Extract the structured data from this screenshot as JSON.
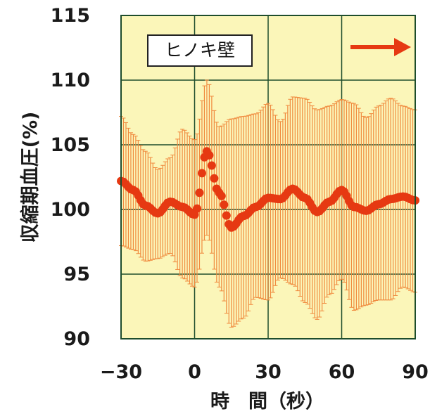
{
  "chart_data": {
    "type": "line",
    "ylabel": "収縮期血圧(%)",
    "xlabel": "時　間（秒）",
    "xlim": [
      -30,
      90
    ],
    "ylim": [
      90,
      115
    ],
    "x_ticks": [
      -30,
      0,
      30,
      60,
      90
    ],
    "y_ticks": [
      90,
      95,
      100,
      105,
      110,
      115
    ],
    "x_tick_labels": [
      "−30",
      "0",
      "30",
      "60",
      "90"
    ],
    "y_tick_labels": [
      "90",
      "95",
      "100",
      "105",
      "110",
      "115"
    ],
    "grid": true,
    "annotation": "ヒノキ壁",
    "series": [
      {
        "style": "mean-with-error-bars",
        "x": [
          -30,
          -25,
          -20,
          -15,
          -10,
          -5,
          0,
          5,
          10,
          15,
          20,
          25,
          30,
          35,
          40,
          45,
          50,
          55,
          60,
          65,
          70,
          75,
          80,
          85,
          90
        ],
        "y": [
          102.2,
          101.5,
          100.3,
          99.7,
          100.6,
          100.2,
          99.6,
          104.5,
          101.3,
          98.6,
          99.5,
          100.2,
          100.9,
          100.8,
          101.6,
          100.9,
          99.8,
          100.6,
          101.5,
          100.2,
          99.9,
          100.4,
          100.8,
          101.0,
          100.7
        ],
        "upper": [
          107.2,
          105.8,
          104.5,
          103.1,
          104.0,
          106.2,
          105.4,
          110.0,
          106.4,
          107.0,
          107.2,
          107.4,
          108.2,
          106.8,
          108.7,
          108.6,
          107.7,
          108.0,
          108.5,
          108.2,
          107.1,
          108.0,
          108.6,
          108.0,
          107.7
        ],
        "lower": [
          97.2,
          96.9,
          96.0,
          96.2,
          96.6,
          94.7,
          94.0,
          98.0,
          94.0,
          90.9,
          91.6,
          93.2,
          93.0,
          94.7,
          94.2,
          92.8,
          91.5,
          93.4,
          94.6,
          92.2,
          92.6,
          93.0,
          93.0,
          94.0,
          93.6
        ]
      }
    ]
  },
  "colors": {
    "plot_background": "#fbf6b9",
    "grid": "#1e4d2c",
    "frame": "#1e4d2c",
    "error_bar": "#f08a3e",
    "mean_marker": "#e63912",
    "arrow": "#e63912",
    "annotation_box_fill": "#ffffff",
    "annotation_box_stroke": "#222222"
  },
  "icons": {
    "arrow": "right-arrow-icon"
  }
}
